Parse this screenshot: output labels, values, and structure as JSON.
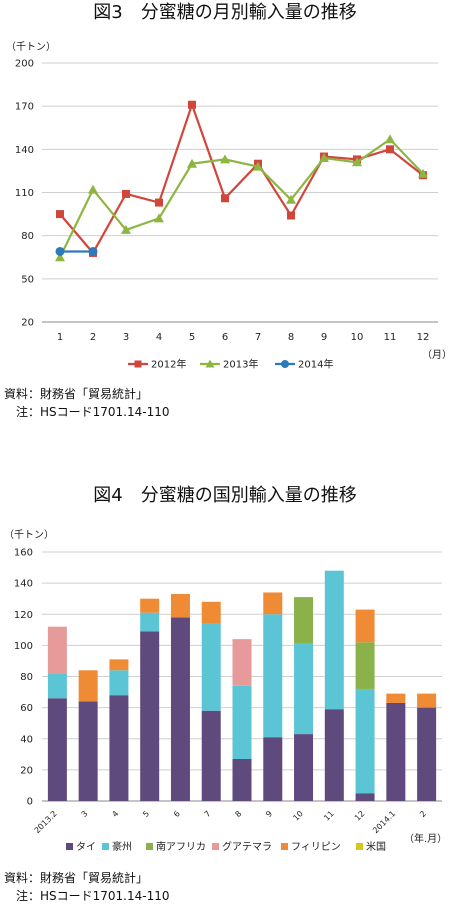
{
  "chart_data": [
    {
      "type": "line",
      "title": "図3　分蜜糖の月別輸入量の推移",
      "ylabel": "（千トン）",
      "xlabel": "（月）",
      "ylim": [
        20,
        200
      ],
      "yticks": [
        20,
        50,
        80,
        110,
        140,
        170,
        200
      ],
      "x": [
        "1",
        "2",
        "3",
        "4",
        "5",
        "6",
        "7",
        "8",
        "9",
        "10",
        "11",
        "12"
      ],
      "grid": "horizontal",
      "legend": "bottom",
      "series": [
        {
          "name": "2012年",
          "color": "#d0463b",
          "marker": "square",
          "values": [
            95,
            68,
            109,
            103,
            171,
            106,
            130,
            94,
            135,
            133,
            140,
            122
          ]
        },
        {
          "name": "2013年",
          "color": "#8db542",
          "marker": "triangle",
          "values": [
            65,
            112,
            84,
            92,
            130,
            133,
            128,
            105,
            134,
            131,
            147,
            123
          ]
        },
        {
          "name": "2014年",
          "color": "#2e7ab7",
          "marker": "circle",
          "values": [
            69,
            69,
            null,
            null,
            null,
            null,
            null,
            null,
            null,
            null,
            null,
            null
          ]
        }
      ]
    },
    {
      "type": "bar",
      "stacked": true,
      "title": "図4　分蜜糖の国別輸入量の推移",
      "ylabel": "（千トン）",
      "xlabel": "（年.月）",
      "ylim": [
        0,
        160
      ],
      "yticks": [
        0,
        20,
        40,
        60,
        80,
        100,
        120,
        140,
        160
      ],
      "categories": [
        "2013.2",
        "3",
        "4",
        "5",
        "6",
        "7",
        "8",
        "9",
        "10",
        "11",
        "12",
        "2014.1",
        "2"
      ],
      "grid": "horizontal",
      "legend": "bottom",
      "series": [
        {
          "name": "タイ",
          "color": "#5f4a7e",
          "values": [
            66,
            64,
            68,
            109,
            118,
            58,
            27,
            41,
            43,
            59,
            5,
            63,
            60
          ]
        },
        {
          "name": "豪州",
          "color": "#5bc5d6",
          "values": [
            16,
            0,
            16,
            12,
            0,
            56,
            47,
            79,
            58,
            89,
            67,
            0,
            0
          ]
        },
        {
          "name": "南アフリカ",
          "color": "#8bb24a",
          "values": [
            0,
            0,
            0,
            0,
            0,
            0,
            0,
            0,
            30,
            0,
            30,
            0,
            0
          ]
        },
        {
          "name": "グアテマラ",
          "color": "#e69a9a",
          "values": [
            30,
            0,
            0,
            0,
            0,
            0,
            30,
            0,
            0,
            0,
            0,
            0,
            0
          ]
        },
        {
          "name": "フィリピン",
          "color": "#ef8a35",
          "values": [
            0,
            20,
            7,
            9,
            15,
            14,
            0,
            14,
            0,
            0,
            21,
            6,
            9
          ]
        },
        {
          "name": "米国",
          "color": "#d4c81c",
          "values": [
            0,
            0,
            0,
            0,
            0,
            0,
            0,
            0,
            0,
            0,
            0,
            0,
            0
          ]
        }
      ]
    }
  ],
  "source1": {
    "line1": "資料：財務省「貿易統計」",
    "line2": "　注：HSコード1701.14-110"
  },
  "source2": {
    "line1": "資料：財務省「貿易統計」",
    "line2": "　注：HSコード1701.14-110"
  }
}
